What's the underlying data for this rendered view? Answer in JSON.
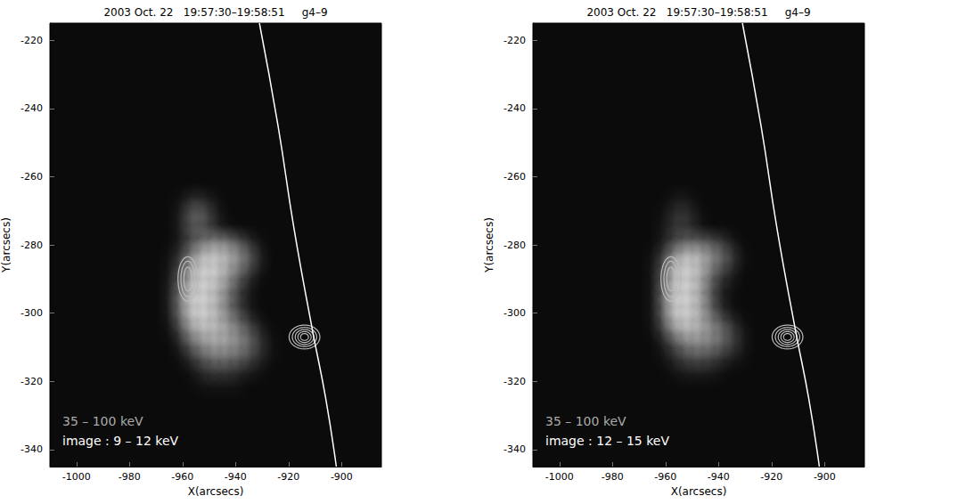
{
  "chart_data": [
    {
      "type": "image",
      "title": "2003 Oct. 22   19:57:30–19:58:51     g4–9",
      "xlabel": "X(arcsecs)",
      "ylabel": "Y(arcsecs)",
      "xlim": [
        -1010,
        -885
      ],
      "ylim": [
        -345,
        -215
      ],
      "xticks": [
        -1000,
        -980,
        -960,
        -940,
        -920,
        -900
      ],
      "yticks": [
        -340,
        -320,
        -300,
        -280,
        -260,
        -240,
        -220
      ],
      "contour_label": "35 – 100 keV",
      "image_label": "image : 9 – 12 keV",
      "limb": {
        "color": "#ffffff",
        "x": [
          -931,
          -924,
          -918,
          -911,
          -906,
          -902
        ],
        "y": [
          -215,
          -245,
          -275,
          -305,
          -325,
          -345
        ]
      },
      "contours": [
        {
          "color": "#bbbbbb",
          "x": -958,
          "y": -290,
          "rx": [
            1.5,
            2.6,
            3.7
          ],
          "ry": [
            3.5,
            5.2,
            6.5
          ]
        },
        {
          "color": "#bbbbbb",
          "x": -914,
          "y": -307,
          "rx": [
            1.5,
            2.5,
            3.5,
            4.6,
            5.8
          ],
          "ry": [
            1.0,
            1.6,
            2.2,
            2.8,
            3.5
          ]
        }
      ],
      "image_x": [
        -972,
        -968,
        -964,
        -960,
        -956,
        -952,
        -948,
        -944,
        -940,
        -936,
        -932,
        -928,
        -924
      ],
      "image_y": [
        -268,
        -272,
        -276,
        -280,
        -284,
        -288,
        -292,
        -296,
        -300,
        -304,
        -308,
        -312,
        -316,
        -320
      ],
      "image_values": [
        [
          0,
          0,
          0,
          5,
          20,
          15,
          5,
          0,
          0,
          0,
          0,
          0,
          0
        ],
        [
          0,
          0,
          0,
          10,
          35,
          30,
          10,
          0,
          0,
          0,
          0,
          0,
          0
        ],
        [
          0,
          0,
          0,
          8,
          25,
          20,
          10,
          5,
          0,
          0,
          0,
          0,
          0
        ],
        [
          0,
          0,
          0,
          10,
          25,
          45,
          60,
          55,
          40,
          20,
          5,
          0,
          0
        ],
        [
          0,
          0,
          5,
          20,
          60,
          90,
          95,
          80,
          60,
          40,
          15,
          0,
          0
        ],
        [
          0,
          0,
          5,
          30,
          75,
          100,
          95,
          70,
          40,
          20,
          5,
          0,
          0
        ],
        [
          0,
          0,
          10,
          40,
          90,
          100,
          85,
          55,
          25,
          10,
          0,
          0,
          0
        ],
        [
          0,
          0,
          10,
          50,
          100,
          100,
          80,
          45,
          20,
          5,
          0,
          0,
          0
        ],
        [
          0,
          0,
          10,
          45,
          95,
          100,
          80,
          50,
          25,
          10,
          0,
          0,
          0
        ],
        [
          0,
          0,
          5,
          30,
          70,
          85,
          80,
          65,
          45,
          25,
          10,
          0,
          0
        ],
        [
          0,
          0,
          0,
          15,
          40,
          60,
          70,
          65,
          55,
          40,
          20,
          5,
          0
        ],
        [
          0,
          0,
          0,
          5,
          20,
          35,
          45,
          45,
          40,
          30,
          15,
          5,
          0
        ],
        [
          0,
          0,
          0,
          0,
          5,
          15,
          20,
          20,
          15,
          10,
          5,
          0,
          0
        ],
        [
          0,
          0,
          0,
          0,
          0,
          5,
          5,
          5,
          5,
          0,
          0,
          0,
          0
        ]
      ]
    },
    {
      "type": "image",
      "title": "2003 Oct. 22   19:57:30–19:58:51     g4–9",
      "xlabel": "X(arcsecs)",
      "ylabel": "Y(arcsecs)",
      "xlim": [
        -1010,
        -885
      ],
      "ylim": [
        -345,
        -215
      ],
      "xticks": [
        -1000,
        -980,
        -960,
        -940,
        -920,
        -900
      ],
      "yticks": [
        -340,
        -320,
        -300,
        -280,
        -260,
        -240,
        -220
      ],
      "contour_label": "35 – 100 keV",
      "image_label": "image : 12 – 15 keV",
      "limb": {
        "color": "#ffffff",
        "x": [
          -931,
          -924,
          -918,
          -911,
          -906,
          -902
        ],
        "y": [
          -215,
          -245,
          -275,
          -305,
          -325,
          -345
        ]
      },
      "contours": [
        {
          "color": "#bbbbbb",
          "x": -958,
          "y": -290,
          "rx": [
            1.5,
            2.6,
            3.7
          ],
          "ry": [
            3.5,
            5.2,
            6.5
          ]
        },
        {
          "color": "#bbbbbb",
          "x": -914,
          "y": -307,
          "rx": [
            1.5,
            2.5,
            3.5,
            4.6,
            5.8
          ],
          "ry": [
            1.0,
            1.6,
            2.2,
            2.8,
            3.5
          ]
        }
      ],
      "image_x": [
        -972,
        -968,
        -964,
        -960,
        -956,
        -952,
        -948,
        -944,
        -940,
        -936,
        -932,
        -928,
        -924
      ],
      "image_y": [
        -268,
        -272,
        -276,
        -280,
        -284,
        -288,
        -292,
        -296,
        -300,
        -304,
        -308,
        -312,
        -316,
        -320
      ],
      "image_values": [
        [
          0,
          0,
          0,
          0,
          8,
          8,
          0,
          0,
          0,
          0,
          0,
          0,
          0
        ],
        [
          0,
          0,
          0,
          5,
          15,
          15,
          5,
          0,
          0,
          0,
          0,
          0,
          0
        ],
        [
          0,
          0,
          0,
          5,
          15,
          15,
          5,
          0,
          0,
          0,
          0,
          0,
          0
        ],
        [
          0,
          0,
          0,
          10,
          25,
          35,
          40,
          35,
          25,
          10,
          0,
          0,
          0
        ],
        [
          0,
          0,
          5,
          25,
          70,
          95,
          85,
          60,
          40,
          25,
          5,
          0,
          0
        ],
        [
          0,
          0,
          5,
          35,
          90,
          100,
          80,
          45,
          20,
          10,
          0,
          0,
          0
        ],
        [
          0,
          0,
          5,
          40,
          95,
          100,
          75,
          35,
          10,
          5,
          0,
          0,
          0
        ],
        [
          0,
          0,
          5,
          45,
          100,
          100,
          75,
          35,
          10,
          0,
          0,
          0,
          0
        ],
        [
          0,
          0,
          5,
          40,
          95,
          100,
          75,
          40,
          15,
          5,
          0,
          0,
          0
        ],
        [
          0,
          0,
          5,
          30,
          70,
          85,
          75,
          55,
          40,
          20,
          5,
          0,
          0
        ],
        [
          0,
          0,
          0,
          10,
          30,
          50,
          55,
          50,
          40,
          25,
          10,
          0,
          0
        ],
        [
          0,
          0,
          0,
          5,
          15,
          25,
          30,
          25,
          20,
          10,
          5,
          0,
          0
        ],
        [
          0,
          0,
          0,
          0,
          5,
          10,
          10,
          10,
          5,
          0,
          0,
          0,
          0
        ],
        [
          0,
          0,
          0,
          0,
          0,
          0,
          0,
          0,
          0,
          0,
          0,
          0,
          0
        ]
      ]
    }
  ]
}
